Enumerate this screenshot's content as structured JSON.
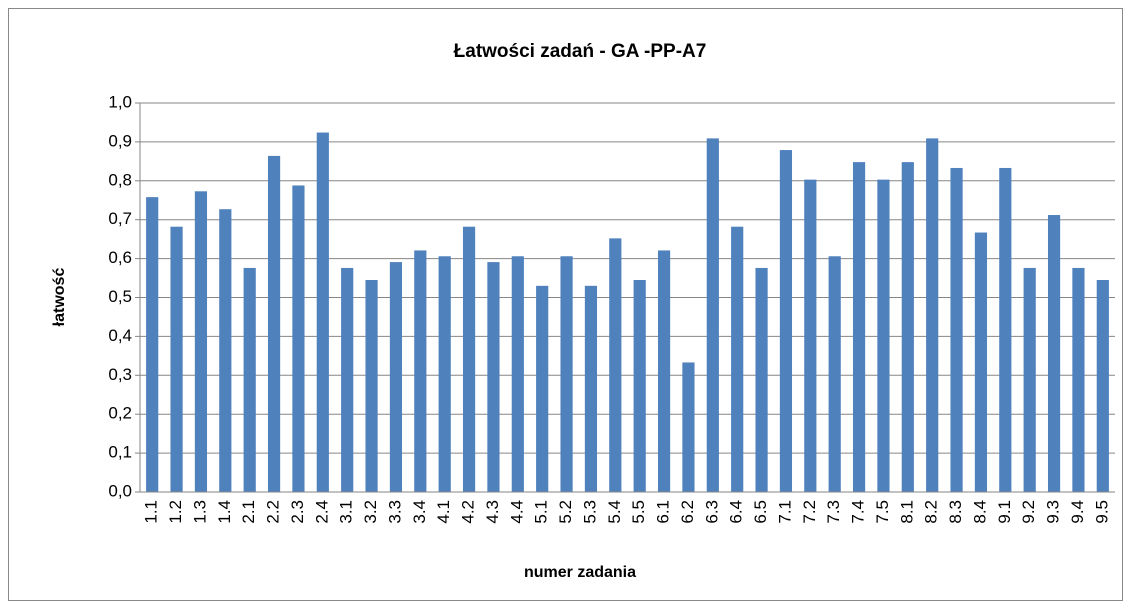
{
  "chart_data": {
    "type": "bar",
    "title": "Łatwości zadań - GA -PP-A7",
    "x_label": "numer zadania",
    "y_label": "łatwość",
    "categories": [
      "1.1",
      "1.2",
      "1.3",
      "1.4",
      "2.1",
      "2.2",
      "2.3",
      "2.4",
      "3.1",
      "3.2",
      "3.3",
      "3.4",
      "4.1",
      "4.2",
      "4.3",
      "4.4",
      "5.1",
      "5.2",
      "5.3",
      "5.4",
      "5.5",
      "6.1",
      "6.2",
      "6.3",
      "6.4",
      "6.5",
      "7.1",
      "7.2",
      "7.3",
      "7.4",
      "7.5",
      "8.1",
      "8.2",
      "8.3",
      "8.4",
      "9.1",
      "9.2",
      "9.3",
      "9.4",
      "9.5"
    ],
    "values": [
      0.758,
      0.682,
      0.773,
      0.727,
      0.576,
      0.864,
      0.788,
      0.924,
      0.576,
      0.545,
      0.591,
      0.621,
      0.606,
      0.682,
      0.591,
      0.606,
      0.53,
      0.606,
      0.53,
      0.652,
      0.545,
      0.621,
      0.333,
      0.909,
      0.682,
      0.576,
      0.879,
      0.803,
      0.606,
      0.848,
      0.803,
      0.848,
      0.909,
      0.833,
      0.667,
      0.833,
      0.576,
      0.712,
      0.576,
      0.545
    ],
    "color": "#4f81bd",
    "ylim": [
      0,
      1
    ],
    "yticks": [
      {
        "value": 0,
        "label": "0,0"
      },
      {
        "value": 0.1,
        "label": "0,1"
      },
      {
        "value": 0.2,
        "label": "0,2"
      },
      {
        "value": 0.3,
        "label": "0,3"
      },
      {
        "value": 0.4,
        "label": "0,4"
      },
      {
        "value": 0.5,
        "label": "0,5"
      },
      {
        "value": 0.6,
        "label": "0,6"
      },
      {
        "value": 0.7,
        "label": "0,7"
      },
      {
        "value": 0.8,
        "label": "0,8"
      },
      {
        "value": 0.9,
        "label": "0,9"
      },
      {
        "value": 1,
        "label": "1,0"
      }
    ],
    "grid": true
  }
}
